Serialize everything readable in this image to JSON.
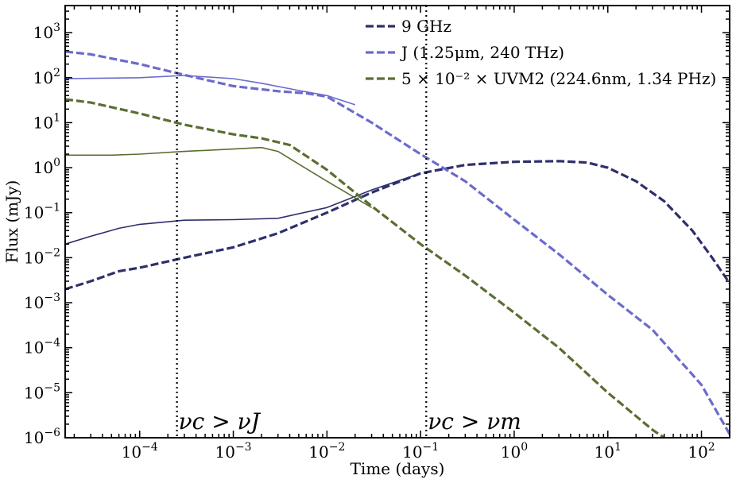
{
  "chart_data": {
    "type": "line",
    "xlabel": "Time (days)",
    "ylabel": "Flux (mJy)",
    "xscale": "log",
    "yscale": "log",
    "xlim": [
      1.6e-05,
      200
    ],
    "ylim": [
      1e-06,
      4000
    ],
    "x_ticks": [
      {
        "value": 0.0001,
        "label": "10",
        "exp": "−4"
      },
      {
        "value": 0.001,
        "label": "10",
        "exp": "−3"
      },
      {
        "value": 0.01,
        "label": "10",
        "exp": "−2"
      },
      {
        "value": 0.1,
        "label": "10",
        "exp": "−1"
      },
      {
        "value": 1,
        "label": "10",
        "exp": "0"
      },
      {
        "value": 10,
        "label": "10",
        "exp": "1"
      },
      {
        "value": 100,
        "label": "10",
        "exp": "2"
      }
    ],
    "y_ticks": [
      {
        "value": 1e-06,
        "label": "10",
        "exp": "−6"
      },
      {
        "value": 1e-05,
        "label": "10",
        "exp": "−5"
      },
      {
        "value": 0.0001,
        "label": "10",
        "exp": "−4"
      },
      {
        "value": 0.001,
        "label": "10",
        "exp": "−3"
      },
      {
        "value": 0.01,
        "label": "10",
        "exp": "−2"
      },
      {
        "value": 0.1,
        "label": "10",
        "exp": "−1"
      },
      {
        "value": 1,
        "label": "10",
        "exp": "0"
      },
      {
        "value": 10,
        "label": "10",
        "exp": "1"
      },
      {
        "value": 100,
        "label": "10",
        "exp": "2"
      },
      {
        "value": 1000,
        "label": "10",
        "exp": "3"
      }
    ],
    "legend_placement": "top-right",
    "legend": [
      {
        "label": "9 GHz",
        "color": "#2e2f6b"
      },
      {
        "label": "J (1.25μm, 240 THz)",
        "color": "#6b6bcc"
      },
      {
        "label": "5 × 10⁻² ×  UVM2 (224.6nm, 1.34 PHz)",
        "color": "#5a6e32"
      }
    ],
    "vlines": [
      {
        "x": 0.00025,
        "label": "νc > νJ"
      },
      {
        "x": 0.115,
        "label": "νc > νm"
      }
    ],
    "series": [
      {
        "name": "9 GHz",
        "style": "dashed",
        "color": "#2e2f6b",
        "x": [
          1.6e-05,
          3e-05,
          6e-05,
          0.0001,
          0.0003,
          0.001,
          0.003,
          0.01,
          0.03,
          0.1,
          0.3,
          1,
          3,
          6,
          10,
          20,
          40,
          80,
          130,
          200
        ],
        "y": [
          0.002,
          0.003,
          0.005,
          0.006,
          0.01,
          0.017,
          0.035,
          0.1,
          0.28,
          0.75,
          1.15,
          1.35,
          1.4,
          1.3,
          1.0,
          0.5,
          0.18,
          0.04,
          0.01,
          0.0027
        ]
      },
      {
        "name": "9 GHz",
        "style": "solid",
        "color": "#2e2f6b",
        "x": [
          1.6e-05,
          3e-05,
          6e-05,
          0.0001,
          0.0003,
          0.001,
          0.003,
          0.01,
          0.03,
          0.1
        ],
        "y": [
          0.02,
          0.03,
          0.045,
          0.055,
          0.068,
          0.07,
          0.075,
          0.13,
          0.32,
          0.75
        ]
      },
      {
        "name": "J (1.25μm, 240 THz)",
        "style": "dashed",
        "color": "#6b6bcc",
        "x": [
          1.6e-05,
          3e-05,
          0.0001,
          0.0003,
          0.001,
          0.003,
          0.006,
          0.01,
          0.03,
          0.1,
          0.3,
          1,
          3,
          10,
          30,
          100,
          200
        ],
        "y": [
          380,
          330,
          200,
          115,
          65,
          50,
          45,
          38,
          10,
          2,
          0.5,
          0.07,
          0.012,
          0.0015,
          0.00025,
          1.5e-05,
          1.2e-06
        ]
      },
      {
        "name": "J (1.25μm, 240 THz)",
        "style": "solid",
        "color": "#6b6bcc",
        "x": [
          1.6e-05,
          5e-05,
          0.0001,
          0.0003,
          0.001,
          0.002,
          0.005,
          0.01,
          0.02
        ],
        "y": [
          95,
          98,
          100,
          112,
          95,
          75,
          52,
          40,
          25
        ]
      },
      {
        "name": "5 × 10⁻² ×  UVM2 (224.6nm, 1.34 PHz)",
        "style": "dashed",
        "color": "#5a6e32",
        "x": [
          1.6e-05,
          3e-05,
          0.0001,
          0.0003,
          0.001,
          0.002,
          0.004,
          0.01,
          0.03,
          0.1,
          0.3,
          1,
          3,
          10,
          30,
          40
        ],
        "y": [
          33,
          28,
          16,
          9,
          5.5,
          4.5,
          3.2,
          0.9,
          0.14,
          0.02,
          0.004,
          0.0006,
          0.0001,
          1e-05,
          1.5e-06,
          1e-06
        ]
      },
      {
        "name": "5 × 10⁻² ×  UVM2 (224.6nm, 1.34 PHz)",
        "style": "solid",
        "color": "#5a6e32",
        "x": [
          1.6e-05,
          5e-05,
          0.0001,
          0.0003,
          0.001,
          0.002,
          0.003,
          0.005,
          0.01,
          0.03
        ],
        "y": [
          1.9,
          1.9,
          2.0,
          2.3,
          2.6,
          2.8,
          2.3,
          1.2,
          0.5,
          0.13
        ]
      }
    ]
  }
}
